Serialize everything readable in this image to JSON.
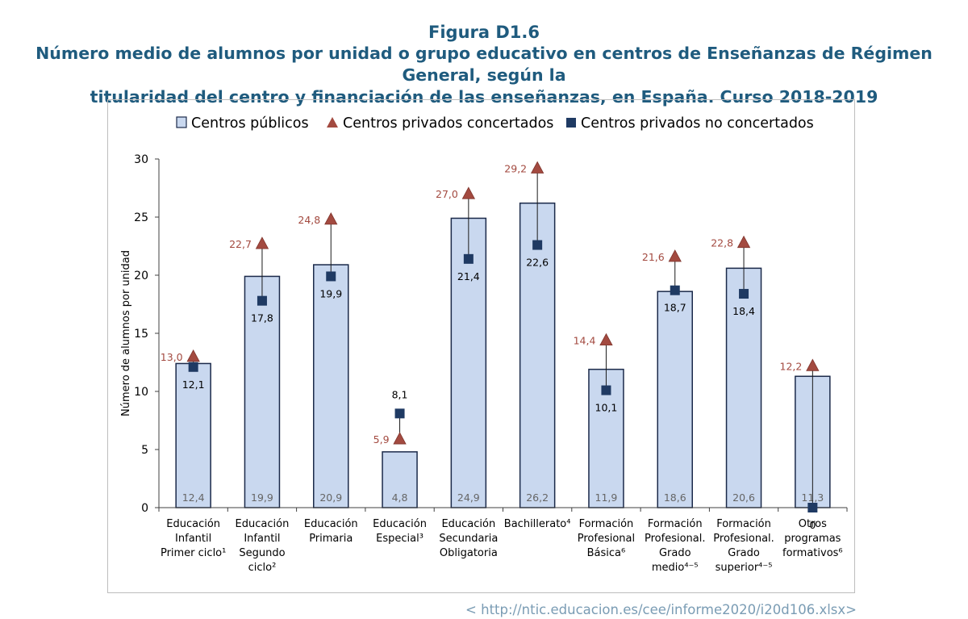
{
  "figure": {
    "label": "Figura D1.6",
    "title_line1": "Número medio de alumnos por unidad o grupo educativo en centros de Enseñanzas de Régimen General, según la",
    "title_line2": "titularidad del centro y financiación de las enseñanzas, en España. Curso 2018-2019",
    "source": "< http://ntic.educacion.es/cee/informe2020/i20d106.xlsx>"
  },
  "colors": {
    "bar_fill": "#c9d8ef",
    "bar_stroke": "#1b2a4a",
    "concertados": "#a34a40",
    "no_concertados": "#1f3a63",
    "title": "#1f5b7e"
  },
  "chart_data": {
    "type": "bar",
    "title": "",
    "xlabel": "",
    "ylabel": "Número de alumnos por unidad",
    "ylim": [
      0,
      30
    ],
    "yticks": [
      0,
      5,
      10,
      15,
      20,
      25,
      30
    ],
    "grid": false,
    "legend_position": "top",
    "categories": [
      [
        "Educación",
        "Infantil",
        "Primer ciclo¹"
      ],
      [
        "Educación",
        "Infantil",
        "Segundo",
        "ciclo²"
      ],
      [
        "Educación",
        "Primaria"
      ],
      [
        "Educación",
        "Especial³"
      ],
      [
        "Educación",
        "Secundaria",
        "Obligatoria"
      ],
      [
        "Bachillerato⁴"
      ],
      [
        "Formación",
        "Profesional",
        "Básica⁶"
      ],
      [
        "Formación",
        "Profesional.",
        "Grado",
        "medio⁴⁻⁵"
      ],
      [
        "Formación",
        "Profesional.",
        "Grado",
        "superior⁴⁻⁵"
      ],
      [
        "Otros",
        "programas",
        "formativos⁶"
      ]
    ],
    "series": [
      {
        "name": "Centros públicos",
        "marker": "bar",
        "values": [
          12.4,
          19.9,
          20.9,
          4.8,
          24.9,
          26.2,
          11.9,
          18.6,
          20.6,
          11.3
        ],
        "labels": [
          "12,4",
          "19,9",
          "20,9",
          "4,8",
          "24,9",
          "26,2",
          "11,9",
          "18,6",
          "20,6",
          "11,3"
        ]
      },
      {
        "name": "Centros privados concertados",
        "marker": "triangle",
        "values": [
          13.0,
          22.7,
          24.8,
          5.9,
          27.0,
          29.2,
          14.4,
          21.6,
          22.8,
          12.2
        ],
        "labels": [
          "13,0",
          "22,7",
          "24,8",
          "5,9",
          "27,0",
          "29,2",
          "14,4",
          "21,6",
          "22,8",
          "12,2"
        ]
      },
      {
        "name": "Centros privados no concertados",
        "marker": "square",
        "values": [
          12.1,
          17.8,
          19.9,
          8.1,
          21.4,
          22.6,
          10.1,
          18.7,
          18.4,
          0
        ],
        "labels": [
          "12,1",
          "17,8",
          "19,9",
          "8,1",
          "21,4",
          "22,6",
          "10,1",
          "18,7",
          "18,4",
          "0"
        ]
      }
    ]
  }
}
